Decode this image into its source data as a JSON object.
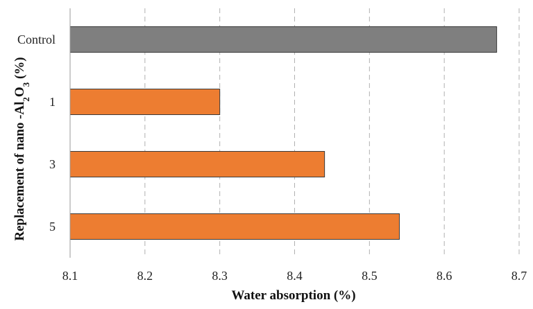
{
  "chart_data": {
    "type": "bar",
    "orientation": "horizontal",
    "categories": [
      "Control",
      "1",
      "3",
      "5"
    ],
    "values": [
      8.67,
      8.3,
      8.44,
      8.54
    ],
    "colors": [
      "#7f7f7f",
      "#ed7d31",
      "#ed7d31",
      "#ed7d31"
    ],
    "xlabel": "Water absorption (%)",
    "ylabel_prefix": "Replacement of nano -Al",
    "ylabel_sub1": "2",
    "ylabel_mid": "O",
    "ylabel_sub2": "3",
    "ylabel_suffix": " (%)",
    "xlim": [
      8.1,
      8.7
    ],
    "xticks": [
      "8.1",
      "8.2",
      "8.3",
      "8.4",
      "8.5",
      "8.6",
      "8.7"
    ],
    "grid": "vertical-dashed",
    "legend": "none"
  }
}
